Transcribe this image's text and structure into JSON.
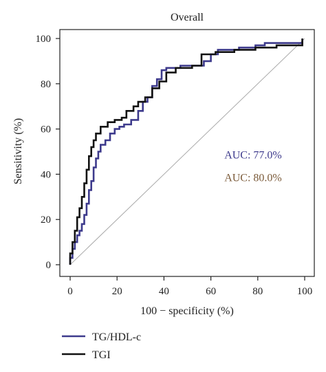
{
  "chart_data": {
    "type": "line",
    "title": "Overall",
    "xlabel": "100 − specificity (%)",
    "ylabel": "Sensitivity (%)",
    "xlim": [
      0,
      100
    ],
    "ylim": [
      0,
      100
    ],
    "xticks": [
      0,
      20,
      40,
      60,
      80,
      100
    ],
    "yticks": [
      0,
      20,
      40,
      60,
      80,
      100
    ],
    "grid": false,
    "legend_position": "bottom-left, below plot",
    "reference_line": {
      "from": [
        0,
        0
      ],
      "to": [
        100,
        100
      ],
      "color": "#aaaaaa"
    },
    "annotations": [
      {
        "text": "AUC: 77.0%",
        "x": 78,
        "y": 47,
        "color": "#3d3a8c"
      },
      {
        "text": "AUC: 80.0%",
        "x": 78,
        "y": 37,
        "color": "#7b5b3a"
      }
    ],
    "series": [
      {
        "name": "TG/HDL-c",
        "color": "#3d3a8c",
        "x": [
          0,
          0,
          1,
          1,
          2,
          2,
          3,
          3,
          4,
          4,
          5,
          5,
          6,
          6,
          7,
          7,
          8,
          8,
          9,
          9,
          10,
          10,
          11,
          11,
          12,
          12,
          13,
          13,
          15,
          15,
          17,
          17,
          19,
          19,
          21,
          21,
          23,
          23,
          26,
          26,
          29,
          29,
          31,
          31,
          33,
          33,
          35,
          35,
          37,
          37,
          39,
          39,
          41,
          41,
          47,
          47,
          57,
          57,
          60,
          60,
          63,
          63,
          72,
          72,
          79,
          79,
          83,
          83,
          99,
          99
        ],
        "y": [
          0,
          3,
          3,
          7,
          7,
          10,
          10,
          13,
          13,
          15,
          15,
          18,
          18,
          22,
          22,
          27,
          27,
          33,
          33,
          37,
          37,
          43,
          43,
          47,
          47,
          50,
          50,
          53,
          53,
          55,
          55,
          58,
          58,
          60,
          60,
          61,
          61,
          62,
          62,
          64,
          64,
          68,
          68,
          72,
          72,
          74,
          74,
          79,
          79,
          82,
          82,
          86,
          86,
          87,
          87,
          88,
          88,
          90,
          90,
          93,
          93,
          95,
          95,
          96,
          96,
          97,
          97,
          98,
          98,
          100
        ]
      },
      {
        "name": "TGI",
        "color": "#111111",
        "x": [
          0,
          0,
          1,
          1,
          2,
          2,
          3,
          3,
          4,
          4,
          5,
          5,
          6,
          6,
          7,
          7,
          8,
          8,
          9,
          9,
          10,
          10,
          11,
          11,
          13,
          13,
          16,
          16,
          19,
          19,
          22,
          22,
          24,
          24,
          27,
          27,
          29,
          29,
          32,
          32,
          35,
          35,
          38,
          38,
          41,
          41,
          45,
          45,
          52,
          52,
          56,
          56,
          62,
          62,
          70,
          70,
          79,
          79,
          88,
          88,
          99,
          99
        ],
        "y": [
          0,
          5,
          5,
          10,
          10,
          15,
          15,
          21,
          21,
          25,
          25,
          30,
          30,
          36,
          36,
          42,
          42,
          48,
          48,
          52,
          52,
          55,
          55,
          58,
          58,
          61,
          61,
          63,
          63,
          64,
          64,
          65,
          65,
          68,
          68,
          70,
          70,
          72,
          72,
          74,
          74,
          78,
          78,
          81,
          81,
          85,
          85,
          87,
          87,
          88,
          88,
          93,
          93,
          94,
          94,
          95,
          95,
          96,
          96,
          97,
          97,
          100
        ]
      }
    ]
  }
}
